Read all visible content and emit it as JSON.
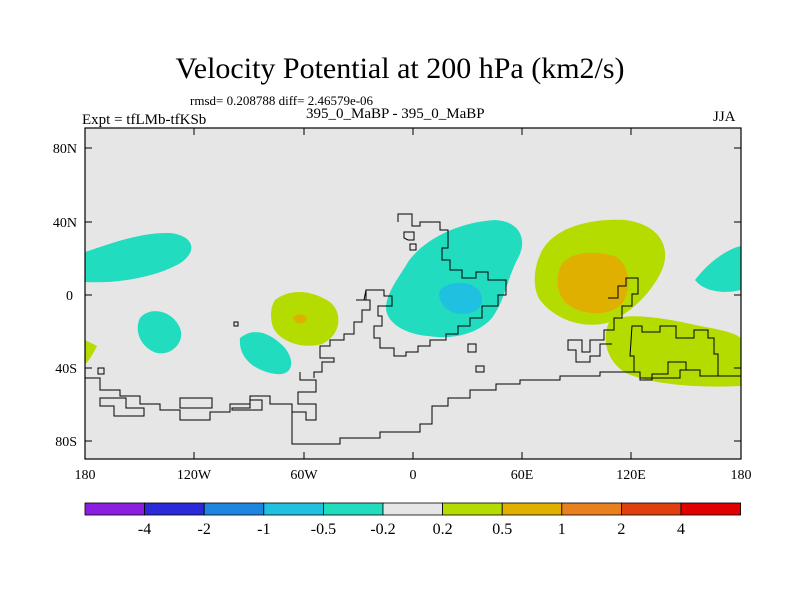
{
  "header": {
    "title": "Velocity Potential at 200 hPa (km2/s)",
    "stats": "rmsd= 0.208788 diff= 2.46579e-06",
    "experiment": "Expt = tfLMb-tfKSb",
    "difference_label": "395_0_MaBP - 395_0_MaBP",
    "season": "JJA"
  },
  "axes": {
    "x_ticks": [
      "180",
      "120W",
      "60W",
      "0",
      "60E",
      "120E",
      "180"
    ],
    "y_ticks": [
      "80N",
      "40N",
      "0",
      "40S",
      "80S"
    ]
  },
  "colorbar": {
    "colors": [
      "#8a1fe0",
      "#2a2ad8",
      "#1e86e0",
      "#20c0e0",
      "#22dcc0",
      "#e6e6e6",
      "#b4dc00",
      "#e0b000",
      "#e88020",
      "#e04010",
      "#e00000"
    ],
    "labels": [
      "-4",
      "-2",
      "-1",
      "-0.5",
      "-0.2",
      "0.2",
      "0.5",
      "1",
      "2",
      "4"
    ]
  }
}
